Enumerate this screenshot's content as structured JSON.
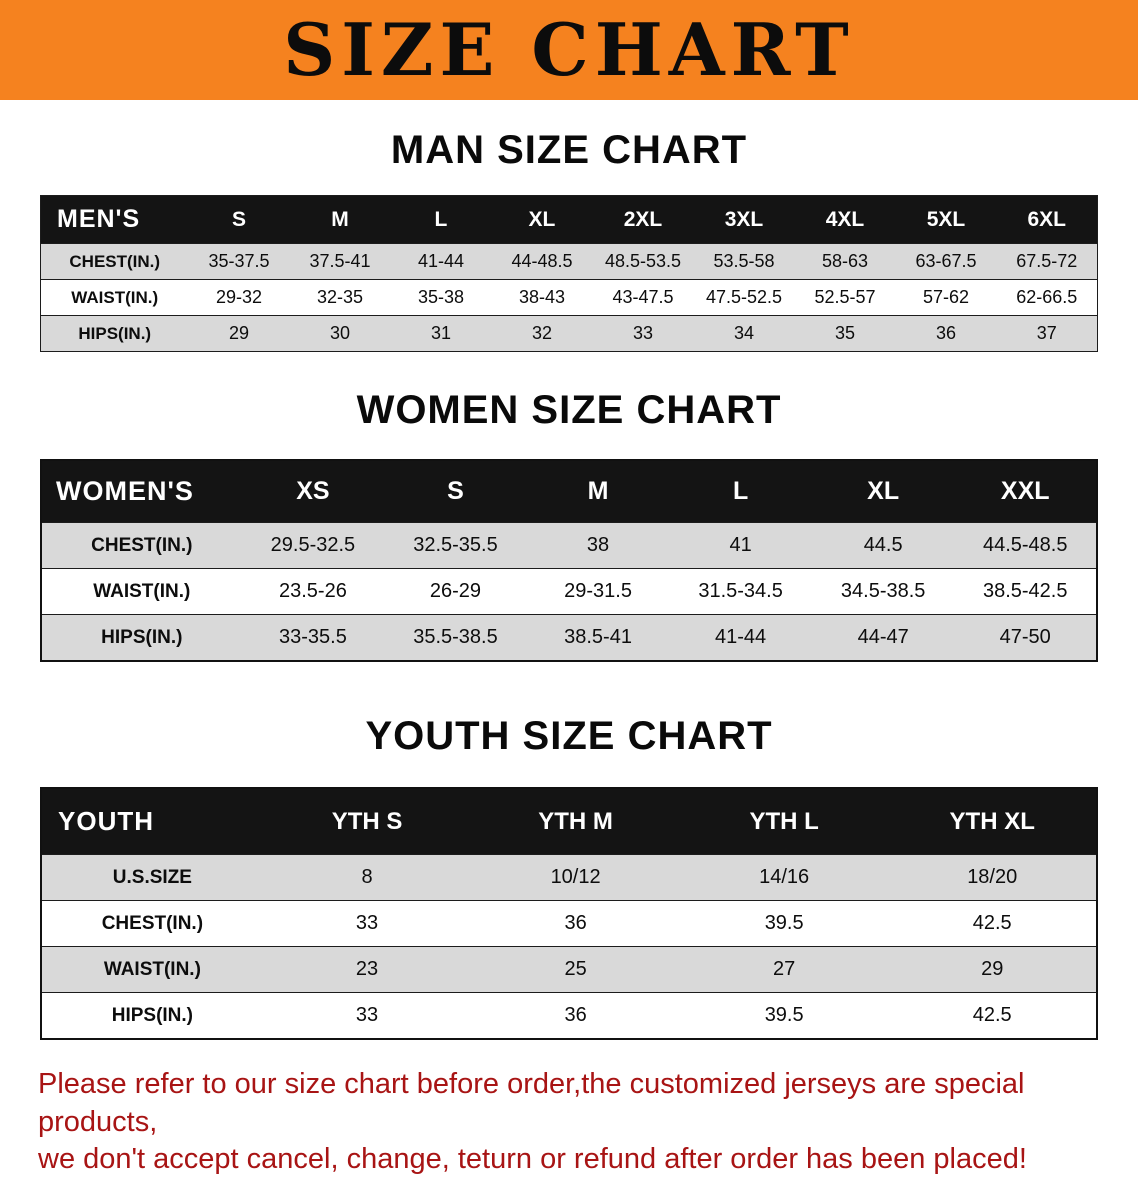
{
  "banner": {
    "title": "SIZE CHART"
  },
  "sections": {
    "men": {
      "heading": "MAN SIZE CHART",
      "table": {
        "header": [
          "MEN'S",
          "S",
          "M",
          "L",
          "XL",
          "2XL",
          "3XL",
          "4XL",
          "5XL",
          "6XL"
        ],
        "rows": [
          [
            "CHEST(IN.)",
            "35-37.5",
            "37.5-41",
            "41-44",
            "44-48.5",
            "48.5-53.5",
            "53.5-58",
            "58-63",
            "63-67.5",
            "67.5-72"
          ],
          [
            "WAIST(IN.)",
            "29-32",
            "32-35",
            "35-38",
            "38-43",
            "43-47.5",
            "47.5-52.5",
            "52.5-57",
            "57-62",
            "62-66.5"
          ],
          [
            "HIPS(IN.)",
            "29",
            "30",
            "31",
            "32",
            "33",
            "34",
            "35",
            "36",
            "37"
          ]
        ]
      }
    },
    "women": {
      "heading": "WOMEN SIZE CHART",
      "table": {
        "header": [
          "WOMEN'S",
          "XS",
          "S",
          "M",
          "L",
          "XL",
          "XXL"
        ],
        "rows": [
          [
            "CHEST(IN.)",
            "29.5-32.5",
            "32.5-35.5",
            "38",
            "41",
            "44.5",
            "44.5-48.5"
          ],
          [
            "WAIST(IN.)",
            "23.5-26",
            "26-29",
            "29-31.5",
            "31.5-34.5",
            "34.5-38.5",
            "38.5-42.5"
          ],
          [
            "HIPS(IN.)",
            "33-35.5",
            "35.5-38.5",
            "38.5-41",
            "41-44",
            "44-47",
            "47-50"
          ]
        ]
      }
    },
    "youth": {
      "heading": "YOUTH SIZE CHART",
      "table": {
        "header": [
          "YOUTH",
          "YTH S",
          "YTH M",
          "YTH L",
          "YTH XL"
        ],
        "rows": [
          [
            "U.S.SIZE",
            "8",
            "10/12",
            "14/16",
            "18/20"
          ],
          [
            "CHEST(IN.)",
            "33",
            "36",
            "39.5",
            "42.5"
          ],
          [
            "WAIST(IN.)",
            "23",
            "25",
            "27",
            "29"
          ],
          [
            "HIPS(IN.)",
            "33",
            "36",
            "39.5",
            "42.5"
          ]
        ]
      }
    }
  },
  "footer": {
    "line1": "Please refer to our size chart before order,the customized jerseys are special products,",
    "line2": "we don't accept cancel, change, teturn or refund after order has been placed!"
  },
  "colors": {
    "banner_bg": "#f5821f",
    "header_bg": "#141414",
    "row_alt_bg": "#d9d9d9",
    "footer_text": "#a81414"
  }
}
